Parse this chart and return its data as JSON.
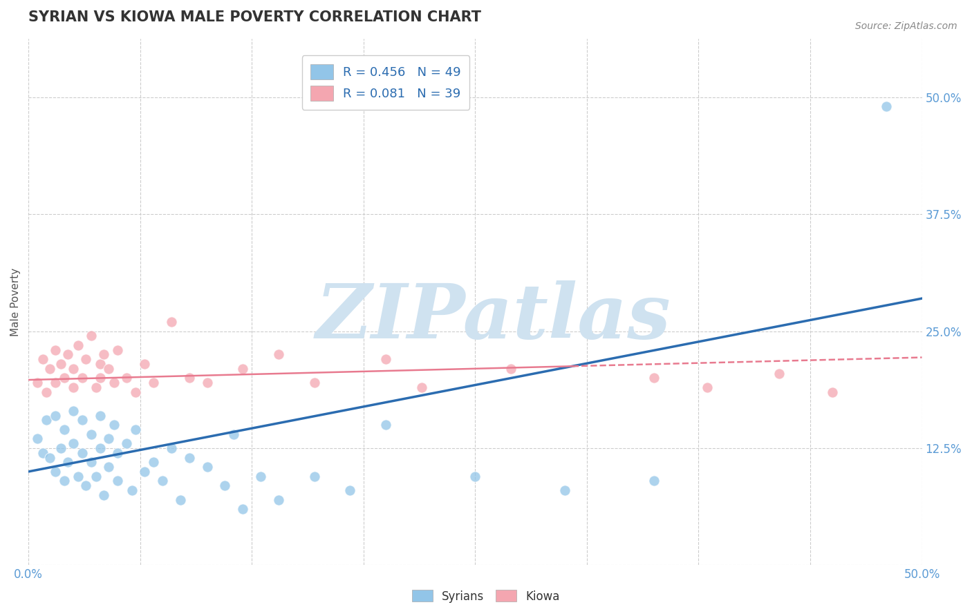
{
  "title": "SYRIAN VS KIOWA MALE POVERTY CORRELATION CHART",
  "source_text": "Source: ZipAtlas.com",
  "ylabel": "Male Poverty",
  "xlim": [
    0.0,
    0.5
  ],
  "ylim": [
    0.0,
    0.5625
  ],
  "xticks": [
    0.0,
    0.0625,
    0.125,
    0.1875,
    0.25,
    0.3125,
    0.375,
    0.4375,
    0.5
  ],
  "yticks": [
    0.0,
    0.125,
    0.25,
    0.375,
    0.5
  ],
  "yticklabels": [
    "",
    "12.5%",
    "25.0%",
    "37.5%",
    "50.0%"
  ],
  "syrian_R": 0.456,
  "syrian_N": 49,
  "kiowa_R": 0.081,
  "kiowa_N": 39,
  "syrian_color": "#92c5e8",
  "kiowa_color": "#f4a6b0",
  "syrian_line_color": "#2b6cb0",
  "kiowa_line_solid_color": "#e87a8f",
  "kiowa_line_dash_color": "#e87a8f",
  "background_color": "#ffffff",
  "grid_color": "#cccccc",
  "title_color": "#333333",
  "axis_label_color": "#555555",
  "tick_label_color": "#5b9bd5",
  "watermark_color": "#cfe2f0",
  "syrian_x": [
    0.005,
    0.008,
    0.01,
    0.012,
    0.015,
    0.015,
    0.018,
    0.02,
    0.02,
    0.022,
    0.025,
    0.025,
    0.028,
    0.03,
    0.03,
    0.032,
    0.035,
    0.035,
    0.038,
    0.04,
    0.04,
    0.042,
    0.045,
    0.045,
    0.048,
    0.05,
    0.05,
    0.055,
    0.058,
    0.06,
    0.065,
    0.07,
    0.075,
    0.08,
    0.085,
    0.09,
    0.1,
    0.11,
    0.115,
    0.12,
    0.13,
    0.14,
    0.16,
    0.18,
    0.2,
    0.25,
    0.3,
    0.35,
    0.48
  ],
  "syrian_y": [
    0.135,
    0.12,
    0.155,
    0.115,
    0.1,
    0.16,
    0.125,
    0.09,
    0.145,
    0.11,
    0.13,
    0.165,
    0.095,
    0.12,
    0.155,
    0.085,
    0.14,
    0.11,
    0.095,
    0.125,
    0.16,
    0.075,
    0.135,
    0.105,
    0.15,
    0.09,
    0.12,
    0.13,
    0.08,
    0.145,
    0.1,
    0.11,
    0.09,
    0.125,
    0.07,
    0.115,
    0.105,
    0.085,
    0.14,
    0.06,
    0.095,
    0.07,
    0.095,
    0.08,
    0.15,
    0.095,
    0.08,
    0.09,
    0.49
  ],
  "kiowa_x": [
    0.005,
    0.008,
    0.01,
    0.012,
    0.015,
    0.015,
    0.018,
    0.02,
    0.022,
    0.025,
    0.025,
    0.028,
    0.03,
    0.032,
    0.035,
    0.038,
    0.04,
    0.04,
    0.042,
    0.045,
    0.048,
    0.05,
    0.055,
    0.06,
    0.065,
    0.07,
    0.08,
    0.09,
    0.1,
    0.12,
    0.14,
    0.16,
    0.2,
    0.22,
    0.27,
    0.35,
    0.38,
    0.42,
    0.45
  ],
  "kiowa_y": [
    0.195,
    0.22,
    0.185,
    0.21,
    0.23,
    0.195,
    0.215,
    0.2,
    0.225,
    0.19,
    0.21,
    0.235,
    0.2,
    0.22,
    0.245,
    0.19,
    0.215,
    0.2,
    0.225,
    0.21,
    0.195,
    0.23,
    0.2,
    0.185,
    0.215,
    0.195,
    0.26,
    0.2,
    0.195,
    0.21,
    0.225,
    0.195,
    0.22,
    0.19,
    0.21,
    0.2,
    0.19,
    0.205,
    0.185
  ],
  "syrian_line_x0": 0.0,
  "syrian_line_y0": 0.1,
  "syrian_line_x1": 0.5,
  "syrian_line_y1": 0.285,
  "kiowa_line_x0": 0.0,
  "kiowa_line_y0": 0.198,
  "kiowa_line_x1": 0.5,
  "kiowa_line_y1": 0.222
}
